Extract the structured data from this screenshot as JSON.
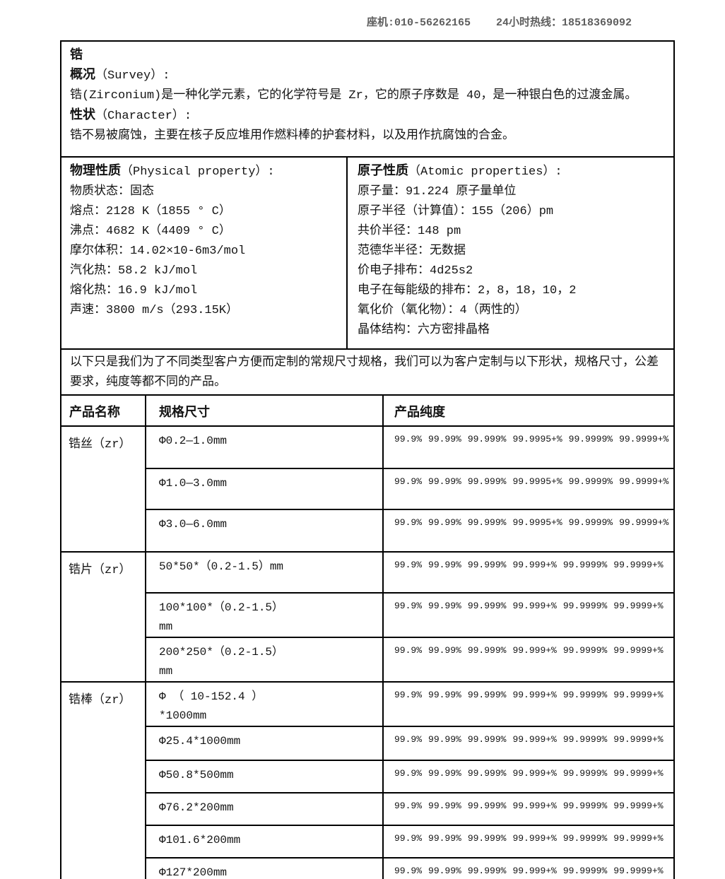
{
  "colors": {
    "text": "#141414",
    "border": "#000000",
    "phone_text": "#5e5e5e",
    "background": "#ffffff"
  },
  "header": {
    "phone_line": "座机:010-56262165    24小时热线：18518369092"
  },
  "intro": {
    "title": "锆",
    "survey_label_zh": "概况",
    "survey_label_en": "（Survey）:",
    "survey_text": "锆(Zirconium)是一种化学元素，它的化学符号是 Zr，它的原子序数是 40，是一种银白色的过渡金属。",
    "character_label_zh": "性状",
    "character_label_en": "（Character）:",
    "character_text": "锆不易被腐蚀，主要在核子反应堆用作燃料棒的护套材料，以及用作抗腐蚀的合金。"
  },
  "physical": {
    "title_zh": "物理性质",
    "title_en": "（Physical property）:",
    "lines": [
      "物质状态：固态",
      "熔点：2128 K（1855 ° C）",
      "沸点：4682 K（4409 ° C）",
      "摩尔体积：14.02×10-6m3/mol",
      "汽化热：58.2 kJ/mol",
      "熔化热：16.9 kJ/mol",
      "声速：3800 m/s（293.15K）"
    ]
  },
  "atomic": {
    "title_zh": "原子性质",
    "title_en": "（Atomic properties）:",
    "lines": [
      "原子量：91.224 原子量单位",
      "原子半径（计算值）：155（206）pm",
      "共价半径：148 pm",
      "范德华半径：无数据",
      "价电子排布：4d25s2",
      "电子在每能级的排布：2，8，18，10，2",
      "氧化价（氧化物）：4（两性的）",
      "晶体结构：六方密排晶格"
    ]
  },
  "note": {
    "text": "以下只是我们为了不同类型客户方便而定制的常规尺寸规格，我们可以为客户定制与以下形状，规格尺寸，公差要求，纯度等都不同的产品。"
  },
  "products": {
    "headers": {
      "name": "产品名称",
      "spec": "规格尺寸",
      "purity": "产品纯度"
    },
    "groups": [
      {
        "name": "锆丝（zr）",
        "rows": [
          {
            "spec": "Φ0.2—1.0mm",
            "purity": [
              "99.9%",
              "99.99%",
              "99.999%",
              "99.9995+%",
              "99.9999%",
              "99.9999+%"
            ]
          },
          {
            "spec": "Φ1.0—3.0mm",
            "purity": [
              "99.9%",
              "99.99%",
              "99.999%",
              "99.9995+%",
              "99.9999%",
              "99.9999+%"
            ]
          },
          {
            "spec": "Φ3.0—6.0mm",
            "purity": [
              "99.9%",
              "99.99%",
              "99.999%",
              "99.9995+%",
              "99.9999%",
              "99.9999+%"
            ]
          }
        ]
      },
      {
        "name": "锆片（zr）",
        "rows": [
          {
            "spec": "50*50*（0.2-1.5）mm",
            "purity": [
              "99.9%",
              "99.99%",
              "99.999%",
              "99.999+%",
              "99.9999%",
              "99.9999+%"
            ]
          },
          {
            "spec": "100*100*（0.2-1.5）\nmm",
            "purity": [
              "99.9%",
              "99.99%",
              "99.999%",
              "99.999+%",
              "99.9999%",
              "99.9999+%"
            ]
          },
          {
            "spec": "200*250*（0.2-1.5）\nmm",
            "purity": [
              "99.9%",
              "99.99%",
              "99.999%",
              "99.999+%",
              "99.9999%",
              "99.9999+%"
            ]
          }
        ]
      },
      {
        "name": "锆棒（zr）",
        "rows": [
          {
            "spec": "Φ （ 10-152.4 ）\n*1000mm",
            "purity": [
              "99.9%",
              "99.99%",
              "99.999%",
              "99.999+%",
              "99.9999%",
              "99.9999+%"
            ]
          },
          {
            "spec": "Φ25.4*1000mm",
            "purity": [
              "99.9%",
              "99.99%",
              "99.999%",
              "99.999+%",
              "99.9999%",
              "99.9999+%"
            ]
          },
          {
            "spec": "Φ50.8*500mm",
            "purity": [
              "99.9%",
              "99.99%",
              "99.999%",
              "99.999+%",
              "99.9999%",
              "99.9999+%"
            ]
          },
          {
            "spec": "Φ76.2*200mm",
            "purity": [
              "99.9%",
              "99.99%",
              "99.999%",
              "99.999+%",
              "99.9999%",
              "99.9999+%"
            ]
          },
          {
            "spec": "Φ101.6*200mm",
            "purity": [
              "99.9%",
              "99.99%",
              "99.999%",
              "99.999+%",
              "99.9999%",
              "99.9999+%"
            ]
          },
          {
            "spec": "Φ127*200mm",
            "purity": [
              "99.9%",
              "99.99%",
              "99.999%",
              "99.999+%",
              "99.9999%",
              "99.9999+%"
            ]
          }
        ]
      }
    ]
  }
}
